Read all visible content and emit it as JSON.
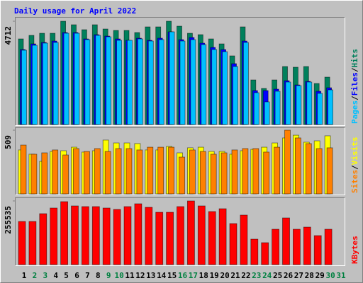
{
  "chart_data": [
    {
      "type": "bar",
      "title": "Daily usage for April 2022",
      "legend_separator": "/",
      "ylim": [
        0,
        4712
      ],
      "yticks": [
        4712
      ],
      "series": [
        {
          "name": "Hits",
          "color": "#00805c",
          "values": [
            3905,
            4067,
            4163,
            4163,
            4712,
            4551,
            4325,
            4551,
            4357,
            4293,
            4293,
            4196,
            4454,
            4454,
            4712,
            4486,
            4163,
            4099,
            3905,
            3679,
            3131,
            4454,
            2033,
            1646,
            2033,
            2646,
            2614,
            2646,
            1872,
            2162,
            null
          ]
        },
        {
          "name": "Files",
          "color": "#0000ff",
          "values": [
            3421,
            3679,
            3744,
            3808,
            4196,
            4196,
            3905,
            4099,
            4034,
            3905,
            3841,
            3937,
            3841,
            3937,
            4228,
            3873,
            3970,
            3712,
            3518,
            3421,
            2776,
            3808,
            1549,
            1549,
            1614,
            2001,
            1807,
            1969,
            1517,
            1678,
            null
          ]
        },
        {
          "name": "Pages",
          "color": "#00c0ff",
          "values": [
            3389,
            3615,
            3712,
            3744,
            4163,
            4163,
            3873,
            4067,
            4002,
            3841,
            3841,
            3905,
            3808,
            3873,
            4228,
            3808,
            3873,
            3647,
            3421,
            3324,
            2646,
            3744,
            1452,
            1033,
            1517,
            1936,
            1775,
            1936,
            1420,
            1581,
            null
          ]
        }
      ]
    },
    {
      "type": "bar",
      "legend_separator": "/",
      "ylim": [
        0,
        509
      ],
      "yticks": [
        509
      ],
      "series": [
        {
          "name": "Visits",
          "color": "#ffff00",
          "values": [
            351,
            317,
            260,
            339,
            345,
            373,
            334,
            345,
            430,
            407,
            407,
            402,
            351,
            351,
            379,
            328,
            368,
            373,
            339,
            339,
            317,
            345,
            356,
            373,
            407,
            447,
            469,
            413,
            424,
            464,
            null
          ]
        },
        {
          "name": "Sites",
          "color": "#ff8000",
          "values": [
            390,
            317,
            328,
            351,
            311,
            362,
            339,
            362,
            339,
            362,
            362,
            351,
            373,
            373,
            373,
            294,
            351,
            339,
            317,
            328,
            351,
            362,
            362,
            334,
            373,
            509,
            447,
            402,
            362,
            368,
            null
          ]
        }
      ]
    },
    {
      "type": "bar",
      "ylim": [
        0,
        255535
      ],
      "yticks": [
        255535
      ],
      "categories": [
        "1",
        "2",
        "3",
        "4",
        "5",
        "6",
        "7",
        "8",
        "9",
        "10",
        "11",
        "12",
        "13",
        "14",
        "15",
        "16",
        "17",
        "18",
        "19",
        "20",
        "21",
        "22",
        "23",
        "24",
        "25",
        "26",
        "27",
        "28",
        "29",
        "30",
        "31"
      ],
      "label_colors": [
        "#000000",
        "#008040",
        "#008040",
        "#000000",
        "#000000",
        "#000000",
        "#000000",
        "#000000",
        "#008040",
        "#008040",
        "#000000",
        "#000000",
        "#000000",
        "#000000",
        "#000000",
        "#008040",
        "#008040",
        "#000000",
        "#000000",
        "#000000",
        "#000000",
        "#000000",
        "#008040",
        "#008040",
        "#000000",
        "#000000",
        "#000000",
        "#000000",
        "#000000",
        "#008040",
        "#008040"
      ],
      "series": [
        {
          "name": "KBytes",
          "color": "#ff0000",
          "values": [
            173198,
            173198,
            204430,
            227144,
            252698,
            235662,
            232823,
            232823,
            227144,
            221465,
            232823,
            244180,
            229983,
            210108,
            210108,
            232823,
            255535,
            235662,
            212948,
            224302,
            164679,
            198751,
            102214,
            88018,
            141965,
            187394,
            141965,
            150482,
            116412,
            141965,
            null
          ]
        }
      ]
    }
  ]
}
